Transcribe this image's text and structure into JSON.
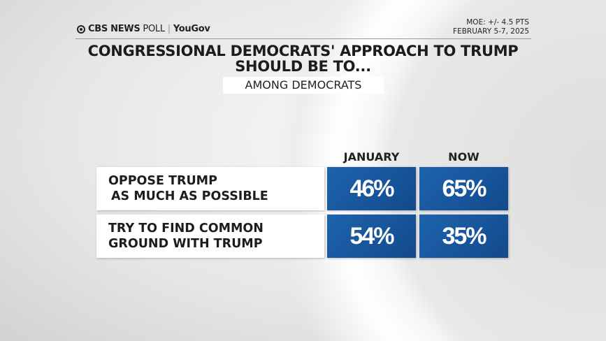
{
  "header": {
    "brand": "CBS NEWS",
    "brand_suffix": "POLL",
    "partner": "YouGov",
    "moe": "MOE: +/- 4.5 PTS",
    "dates": "FEBRUARY 5-7, 2025"
  },
  "chart_data": {
    "type": "table",
    "title_line1": "CONGRESSIONAL DEMOCRATS' APPROACH TO TRUMP",
    "title_line2": "SHOULD BE TO...",
    "subtitle": "AMONG DEMOCRATS",
    "columns": [
      "JANUARY",
      "NOW"
    ],
    "rows": [
      {
        "label_line1": "OPPOSE TRUMP",
        "label_line2": "AS MUCH AS POSSIBLE",
        "values": [
          "46%",
          "65%"
        ]
      },
      {
        "label_line1": "TRY TO FIND COMMON",
        "label_line2": "GROUND WITH TRUMP",
        "values": [
          "54%",
          "35%"
        ]
      }
    ],
    "colors": {
      "cell": "#1a5aa0",
      "label_bg": "#ffffff"
    }
  }
}
